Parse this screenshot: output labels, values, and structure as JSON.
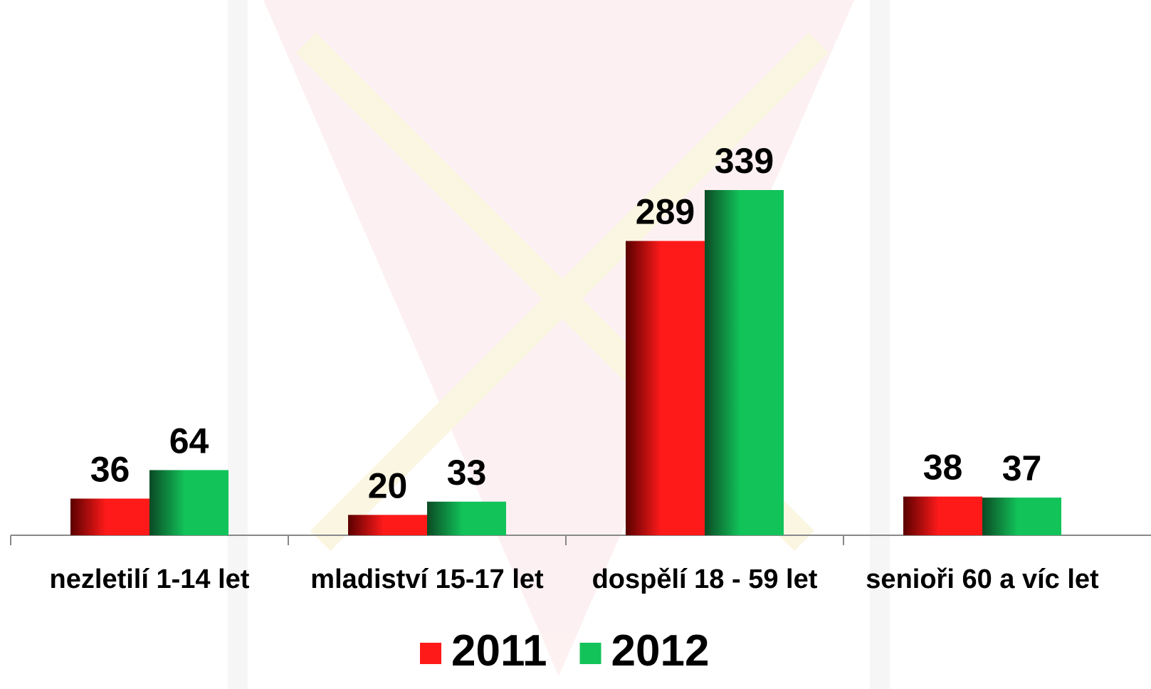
{
  "chart_data": {
    "type": "bar",
    "categories": [
      "nezletilí 1-14 let",
      "mladiství 15-17 let",
      "dospělí 18 - 59 let",
      "senioři 60 a víc let"
    ],
    "series": [
      {
        "name": "2011",
        "color": "#ff1a1a",
        "values": [
          36,
          20,
          289,
          38
        ]
      },
      {
        "name": "2012",
        "color": "#12c35a",
        "values": [
          64,
          33,
          339,
          37
        ]
      }
    ],
    "legend": "bottom"
  }
}
